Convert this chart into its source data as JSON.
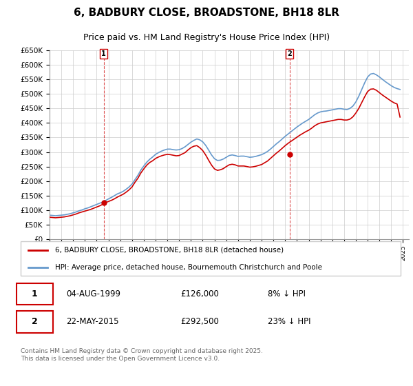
{
  "title": "6, BADBURY CLOSE, BROADSTONE, BH18 8LR",
  "subtitle": "Price paid vs. HM Land Registry's House Price Index (HPI)",
  "legend_line1": "6, BADBURY CLOSE, BROADSTONE, BH18 8LR (detached house)",
  "legend_line2": "HPI: Average price, detached house, Bournemouth Christchurch and Poole",
  "sale1_label": "1",
  "sale1_date": "04-AUG-1999",
  "sale1_price": "£126,000",
  "sale1_hpi": "8% ↓ HPI",
  "sale1_year": 1999.59,
  "sale1_value": 126000,
  "sale2_label": "2",
  "sale2_date": "22-MAY-2015",
  "sale2_price": "£292,500",
  "sale2_hpi": "23% ↓ HPI",
  "sale2_year": 2015.38,
  "sale2_value": 292500,
  "ylim": [
    0,
    650000
  ],
  "xlim_start": 1995,
  "xlim_end": 2025.5,
  "red_color": "#cc0000",
  "blue_color": "#6699cc",
  "grid_color": "#cccccc",
  "background_color": "#ffffff",
  "footer_text": "Contains HM Land Registry data © Crown copyright and database right 2025.\nThis data is licensed under the Open Government Licence v3.0.",
  "hpi_data": {
    "years": [
      1995.0,
      1995.25,
      1995.5,
      1995.75,
      1996.0,
      1996.25,
      1996.5,
      1996.75,
      1997.0,
      1997.25,
      1997.5,
      1997.75,
      1998.0,
      1998.25,
      1998.5,
      1998.75,
      1999.0,
      1999.25,
      1999.5,
      1999.75,
      2000.0,
      2000.25,
      2000.5,
      2000.75,
      2001.0,
      2001.25,
      2001.5,
      2001.75,
      2002.0,
      2002.25,
      2002.5,
      2002.75,
      2003.0,
      2003.25,
      2003.5,
      2003.75,
      2004.0,
      2004.25,
      2004.5,
      2004.75,
      2005.0,
      2005.25,
      2005.5,
      2005.75,
      2006.0,
      2006.25,
      2006.5,
      2006.75,
      2007.0,
      2007.25,
      2007.5,
      2007.75,
      2008.0,
      2008.25,
      2008.5,
      2008.75,
      2009.0,
      2009.25,
      2009.5,
      2009.75,
      2010.0,
      2010.25,
      2010.5,
      2010.75,
      2011.0,
      2011.25,
      2011.5,
      2011.75,
      2012.0,
      2012.25,
      2012.5,
      2012.75,
      2013.0,
      2013.25,
      2013.5,
      2013.75,
      2014.0,
      2014.25,
      2014.5,
      2014.75,
      2015.0,
      2015.25,
      2015.5,
      2015.75,
      2016.0,
      2016.25,
      2016.5,
      2016.75,
      2017.0,
      2017.25,
      2017.5,
      2017.75,
      2018.0,
      2018.25,
      2018.5,
      2018.75,
      2019.0,
      2019.25,
      2019.5,
      2019.75,
      2020.0,
      2020.25,
      2020.5,
      2020.75,
      2021.0,
      2021.25,
      2021.5,
      2021.75,
      2022.0,
      2022.25,
      2022.5,
      2022.75,
      2023.0,
      2023.25,
      2023.5,
      2023.75,
      2024.0,
      2024.25,
      2024.5,
      2024.75
    ],
    "values": [
      83000,
      82000,
      81000,
      82000,
      83000,
      84000,
      86000,
      88000,
      91000,
      94000,
      98000,
      101000,
      105000,
      108000,
      112000,
      116000,
      120000,
      124000,
      128000,
      133000,
      139000,
      144000,
      150000,
      156000,
      160000,
      165000,
      172000,
      180000,
      190000,
      205000,
      220000,
      238000,
      252000,
      265000,
      275000,
      283000,
      292000,
      298000,
      303000,
      307000,
      310000,
      310000,
      308000,
      307000,
      308000,
      312000,
      318000,
      326000,
      334000,
      340000,
      345000,
      342000,
      335000,
      323000,
      307000,
      290000,
      277000,
      271000,
      272000,
      276000,
      282000,
      288000,
      290000,
      288000,
      285000,
      286000,
      286000,
      284000,
      282000,
      283000,
      285000,
      288000,
      291000,
      296000,
      302000,
      310000,
      319000,
      328000,
      336000,
      345000,
      354000,
      362000,
      370000,
      378000,
      386000,
      393000,
      400000,
      406000,
      412000,
      420000,
      428000,
      434000,
      438000,
      440000,
      441000,
      443000,
      445000,
      447000,
      449000,
      449000,
      447000,
      446000,
      450000,
      458000,
      472000,
      492000,
      515000,
      538000,
      558000,
      568000,
      570000,
      565000,
      558000,
      550000,
      542000,
      535000,
      528000,
      522000,
      518000,
      515000
    ]
  },
  "price_data": {
    "years": [
      1995.0,
      1995.25,
      1995.5,
      1995.75,
      1996.0,
      1996.25,
      1996.5,
      1996.75,
      1997.0,
      1997.25,
      1997.5,
      1997.75,
      1998.0,
      1998.25,
      1998.5,
      1998.75,
      1999.0,
      1999.25,
      1999.5,
      1999.75,
      2000.0,
      2000.25,
      2000.5,
      2000.75,
      2001.0,
      2001.25,
      2001.5,
      2001.75,
      2002.0,
      2002.25,
      2002.5,
      2002.75,
      2003.0,
      2003.25,
      2003.5,
      2003.75,
      2004.0,
      2004.25,
      2004.5,
      2004.75,
      2005.0,
      2005.25,
      2005.5,
      2005.75,
      2006.0,
      2006.25,
      2006.5,
      2006.75,
      2007.0,
      2007.25,
      2007.5,
      2007.75,
      2008.0,
      2008.25,
      2008.5,
      2008.75,
      2009.0,
      2009.25,
      2009.5,
      2009.75,
      2010.0,
      2010.25,
      2010.5,
      2010.75,
      2011.0,
      2011.25,
      2011.5,
      2011.75,
      2012.0,
      2012.25,
      2012.5,
      2012.75,
      2013.0,
      2013.25,
      2013.5,
      2013.75,
      2014.0,
      2014.25,
      2014.5,
      2014.75,
      2015.0,
      2015.25,
      2015.5,
      2015.75,
      2016.0,
      2016.25,
      2016.5,
      2016.75,
      2017.0,
      2017.25,
      2017.5,
      2017.75,
      2018.0,
      2018.25,
      2018.5,
      2018.75,
      2019.0,
      2019.25,
      2019.5,
      2019.75,
      2020.0,
      2020.25,
      2020.5,
      2020.75,
      2021.0,
      2021.25,
      2021.5,
      2021.75,
      2022.0,
      2022.25,
      2022.5,
      2022.75,
      2023.0,
      2023.25,
      2023.5,
      2023.75,
      2024.0,
      2024.25,
      2024.5,
      2024.75
    ],
    "values": [
      76000,
      75000,
      74000,
      75000,
      76000,
      77000,
      79000,
      81000,
      84000,
      87000,
      91000,
      94000,
      97000,
      100000,
      103000,
      107000,
      111000,
      115000,
      120000,
      126000,
      130000,
      134000,
      139000,
      145000,
      150000,
      155000,
      162000,
      170000,
      180000,
      196000,
      210000,
      228000,
      242000,
      255000,
      264000,
      270000,
      278000,
      283000,
      287000,
      290000,
      292000,
      291000,
      289000,
      287000,
      288000,
      293000,
      298000,
      307000,
      315000,
      320000,
      322000,
      315000,
      305000,
      290000,
      272000,
      255000,
      242000,
      237000,
      239000,
      243000,
      250000,
      256000,
      258000,
      256000,
      252000,
      252000,
      252000,
      250000,
      248000,
      249000,
      251000,
      254000,
      257000,
      263000,
      269000,
      278000,
      287000,
      296000,
      304000,
      313000,
      322000,
      330000,
      337000,
      344000,
      351000,
      358000,
      364000,
      370000,
      375000,
      382000,
      390000,
      396000,
      400000,
      402000,
      404000,
      406000,
      408000,
      410000,
      412000,
      412000,
      410000,
      410000,
      413000,
      421000,
      434000,
      450000,
      470000,
      490000,
      508000,
      516000,
      517000,
      512000,
      504000,
      496000,
      489000,
      482000,
      475000,
      469000,
      465000,
      420000
    ]
  }
}
